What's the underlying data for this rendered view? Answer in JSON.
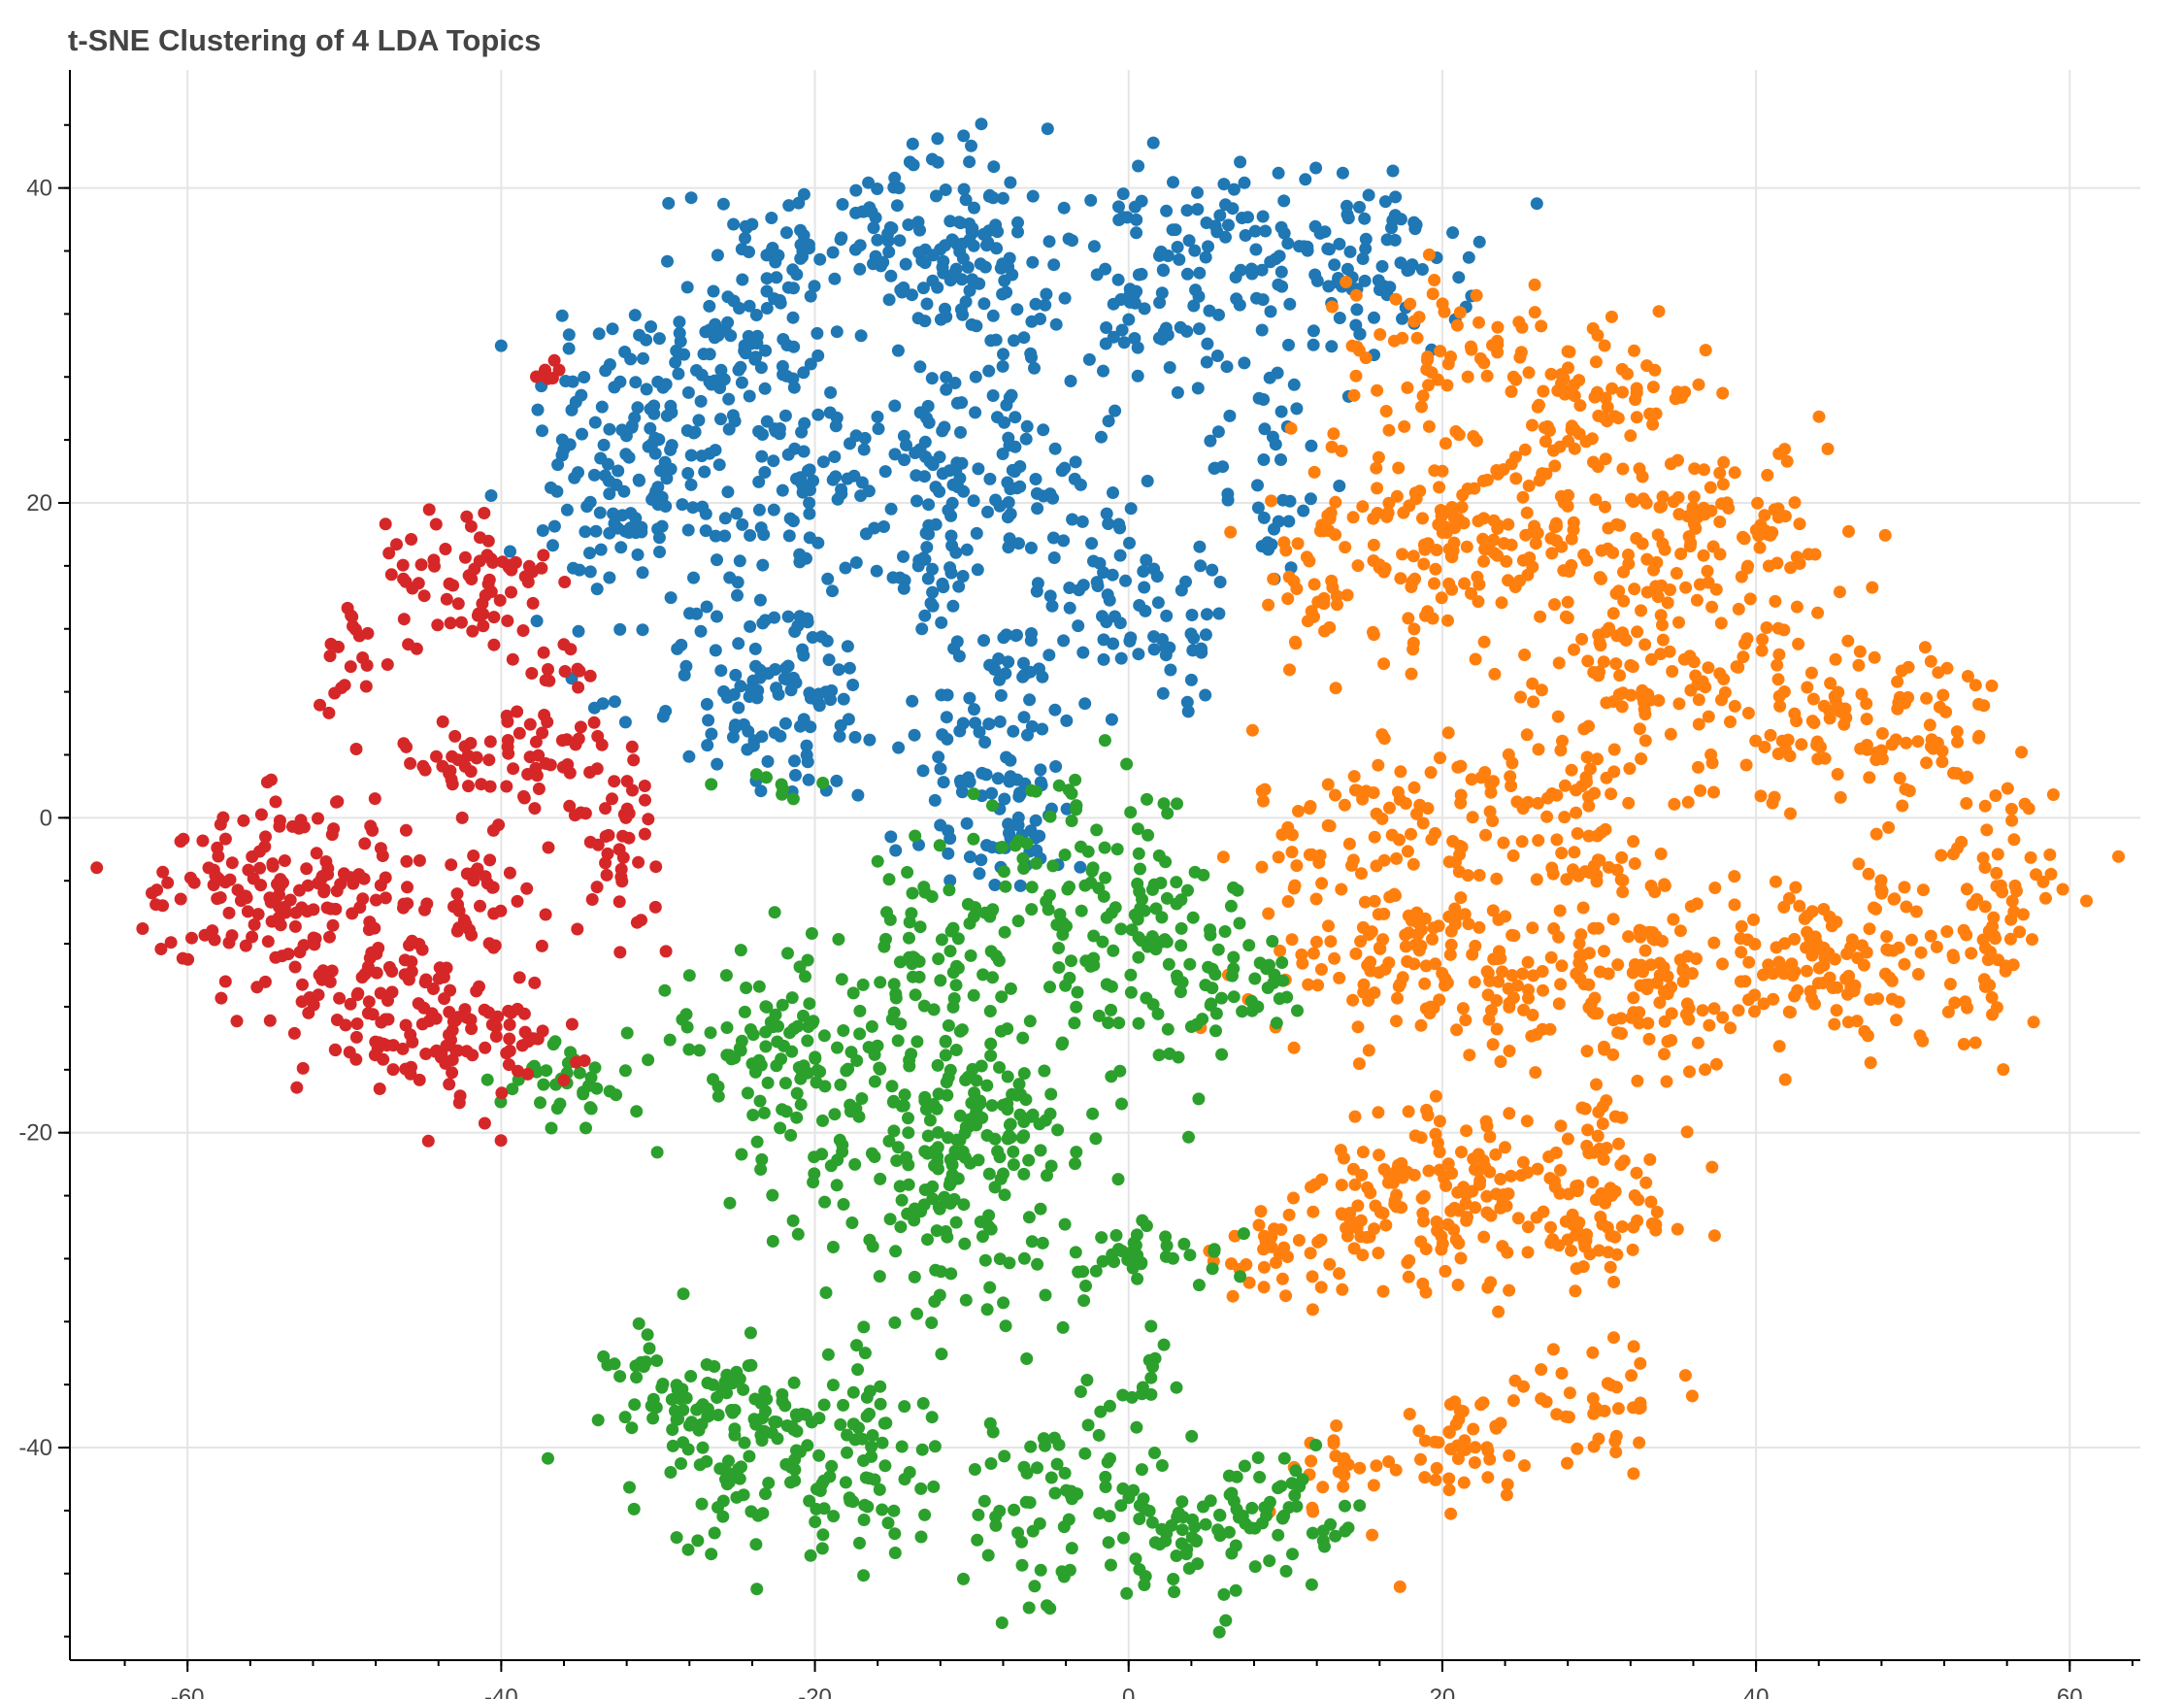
{
  "chart_data": {
    "type": "scatter",
    "title": "t-SNE Clustering of 4 LDA Topics",
    "xlabel": "",
    "ylabel": "",
    "xlim": [
      -67.5,
      64.5
    ],
    "ylim": [
      -53.5,
      47.5
    ],
    "xticks": [
      -60,
      -40,
      -20,
      0,
      20,
      40,
      60
    ],
    "yticks": [
      -40,
      -20,
      0,
      20,
      40
    ],
    "grid": true,
    "legend": "none",
    "series": [
      {
        "color": "#1f77b4",
        "clusters": [
          {
            "cx": -31,
            "cy": 26,
            "sx": 3.5,
            "sy": 3.5,
            "n": 90
          },
          {
            "cx": -24,
            "cy": 30,
            "sx": 3.0,
            "sy": 4.0,
            "n": 80
          },
          {
            "cx": -17,
            "cy": 37,
            "sx": 5.0,
            "sy": 2.0,
            "n": 90
          },
          {
            "cx": -10,
            "cy": 35,
            "sx": 2.5,
            "sy": 4.5,
            "n": 100
          },
          {
            "cx": 2,
            "cy": 34,
            "sx": 3.5,
            "sy": 3.5,
            "n": 110
          },
          {
            "cx": 14,
            "cy": 35,
            "sx": 4.0,
            "sy": 3.0,
            "n": 110
          },
          {
            "cx": -20,
            "cy": 21,
            "sx": 5.0,
            "sy": 3.0,
            "n": 110
          },
          {
            "cx": -9,
            "cy": 22,
            "sx": 4.0,
            "sy": 3.0,
            "n": 80
          },
          {
            "cx": -33,
            "cy": 18,
            "sx": 3.0,
            "sy": 2.5,
            "n": 60
          },
          {
            "cx": -13,
            "cy": 16,
            "sx": 2.0,
            "sy": 2.0,
            "n": 30
          },
          {
            "cx": -1,
            "cy": 15,
            "sx": 2.5,
            "sy": 3.5,
            "n": 60
          },
          {
            "cx": 9,
            "cy": 22,
            "sx": 2.0,
            "sy": 4.0,
            "n": 40
          },
          {
            "cx": -23,
            "cy": 8,
            "sx": 4.0,
            "sy": 3.5,
            "n": 120
          },
          {
            "cx": -8,
            "cy": 5,
            "sx": 2.5,
            "sy": 4.0,
            "n": 90
          },
          {
            "cx": 3,
            "cy": 11,
            "sx": 2.0,
            "sy": 2.0,
            "n": 25
          },
          {
            "cx": -8,
            "cy": -2,
            "sx": 4.0,
            "sy": 1.0,
            "n": 25
          }
        ]
      },
      {
        "color": "#ff7f0e",
        "clusters": [
          {
            "cx": 20,
            "cy": 30,
            "sx": 3.0,
            "sy": 2.5,
            "n": 60
          },
          {
            "cx": 30,
            "cy": 27,
            "sx": 3.5,
            "sy": 2.0,
            "n": 70
          },
          {
            "cx": 18,
            "cy": 18,
            "sx": 4.0,
            "sy": 3.5,
            "n": 110
          },
          {
            "cx": 26,
            "cy": 19,
            "sx": 3.5,
            "sy": 4.0,
            "n": 90
          },
          {
            "cx": 38,
            "cy": 18,
            "sx": 4.0,
            "sy": 3.0,
            "n": 100
          },
          {
            "cx": 33,
            "cy": 10,
            "sx": 5.0,
            "sy": 3.5,
            "n": 120
          },
          {
            "cx": 47,
            "cy": 6,
            "sx": 4.5,
            "sy": 3.0,
            "n": 110
          },
          {
            "cx": 20,
            "cy": 0,
            "sx": 6.0,
            "sy": 3.0,
            "n": 130
          },
          {
            "cx": 30,
            "cy": -3,
            "sx": 3.0,
            "sy": 4.0,
            "n": 60
          },
          {
            "cx": 18,
            "cy": -9,
            "sx": 5.0,
            "sy": 2.5,
            "n": 120
          },
          {
            "cx": 32,
            "cy": -11,
            "sx": 5.0,
            "sy": 2.5,
            "n": 120
          },
          {
            "cx": 45,
            "cy": -9,
            "sx": 5.0,
            "sy": 3.0,
            "n": 130
          },
          {
            "cx": 55,
            "cy": -6,
            "sx": 2.0,
            "sy": 4.0,
            "n": 70
          },
          {
            "cx": 16,
            "cy": -24,
            "sx": 3.0,
            "sy": 2.5,
            "n": 60
          },
          {
            "cx": 22,
            "cy": -24,
            "sx": 3.0,
            "sy": 3.0,
            "n": 90
          },
          {
            "cx": 30,
            "cy": -24,
            "sx": 3.0,
            "sy": 3.5,
            "n": 90
          },
          {
            "cx": 10,
            "cy": -28,
            "sx": 3.0,
            "sy": 1.5,
            "n": 40
          },
          {
            "cx": 30,
            "cy": -37,
            "sx": 2.5,
            "sy": 1.5,
            "n": 40
          },
          {
            "cx": 21,
            "cy": -40,
            "sx": 2.0,
            "sy": 1.5,
            "n": 45
          },
          {
            "cx": 14,
            "cy": -42,
            "sx": 2.0,
            "sy": 2.0,
            "n": 25
          },
          {
            "cx": 11,
            "cy": 14,
            "sx": 1.5,
            "sy": 2.5,
            "n": 25
          }
        ]
      },
      {
        "color": "#2ca02c",
        "clusters": [
          {
            "cx": -3,
            "cy": -4,
            "sx": 4.0,
            "sy": 3.0,
            "n": 90
          },
          {
            "cx": 3,
            "cy": -10,
            "sx": 4.0,
            "sy": 3.0,
            "n": 100
          },
          {
            "cx": -13,
            "cy": -9,
            "sx": 3.5,
            "sy": 3.0,
            "n": 70
          },
          {
            "cx": -24,
            "cy": -14,
            "sx": 3.0,
            "sy": 2.0,
            "n": 50
          },
          {
            "cx": -19,
            "cy": -18,
            "sx": 4.0,
            "sy": 4.0,
            "n": 110
          },
          {
            "cx": -12,
            "cy": -23,
            "sx": 3.0,
            "sy": 4.5,
            "n": 110
          },
          {
            "cx": -7,
            "cy": -19,
            "sx": 2.5,
            "sy": 3.5,
            "n": 70
          },
          {
            "cx": 1,
            "cy": -28,
            "sx": 3.0,
            "sy": 1.0,
            "n": 40
          },
          {
            "cx": -36,
            "cy": -17,
            "sx": 2.0,
            "sy": 1.5,
            "n": 35
          },
          {
            "cx": -28,
            "cy": -37,
            "sx": 2.5,
            "sy": 2.5,
            "n": 70
          },
          {
            "cx": -23,
            "cy": -41,
            "sx": 3.5,
            "sy": 3.0,
            "n": 90
          },
          {
            "cx": -17,
            "cy": -40,
            "sx": 2.5,
            "sy": 3.5,
            "n": 60
          },
          {
            "cx": -4,
            "cy": -44,
            "sx": 4.0,
            "sy": 3.5,
            "n": 90
          },
          {
            "cx": 4,
            "cy": -46,
            "sx": 3.0,
            "sy": 2.0,
            "n": 50
          },
          {
            "cx": 10,
            "cy": -44,
            "sx": 2.5,
            "sy": 2.0,
            "n": 40
          },
          {
            "cx": 2,
            "cy": -35,
            "sx": 1.0,
            "sy": 1.0,
            "n": 12
          },
          {
            "cx": -22,
            "cy": 2,
            "sx": 1.5,
            "sy": 0.5,
            "n": 8
          },
          {
            "cx": 9,
            "cy": -11,
            "sx": 1.0,
            "sy": 1.0,
            "n": 8
          }
        ]
      },
      {
        "color": "#d62728",
        "clusters": [
          {
            "cx": -42,
            "cy": 15,
            "sx": 3.0,
            "sy": 2.5,
            "n": 70
          },
          {
            "cx": -49,
            "cy": 10,
            "sx": 1.5,
            "sy": 1.5,
            "n": 20
          },
          {
            "cx": -36,
            "cy": 9,
            "sx": 1.0,
            "sy": 1.5,
            "n": 12
          },
          {
            "cx": -40,
            "cy": 4,
            "sx": 4.0,
            "sy": 1.5,
            "n": 60
          },
          {
            "cx": -33,
            "cy": -1,
            "sx": 1.5,
            "sy": 3.0,
            "n": 50
          },
          {
            "cx": -41,
            "cy": -4,
            "sx": 2.0,
            "sy": 2.0,
            "n": 30
          },
          {
            "cx": -57,
            "cy": -4,
            "sx": 3.0,
            "sy": 2.5,
            "n": 80
          },
          {
            "cx": -50,
            "cy": -6,
            "sx": 3.5,
            "sy": 4.0,
            "n": 100
          },
          {
            "cx": -45,
            "cy": -11,
            "sx": 2.5,
            "sy": 3.5,
            "n": 60
          },
          {
            "cx": -48,
            "cy": -13,
            "sx": 3.0,
            "sy": 2.0,
            "n": 40
          },
          {
            "cx": -40,
            "cy": -14,
            "sx": 2.5,
            "sy": 2.0,
            "n": 40
          },
          {
            "cx": -37,
            "cy": 28,
            "sx": 0.5,
            "sy": 0.5,
            "n": 8
          }
        ]
      }
    ]
  }
}
